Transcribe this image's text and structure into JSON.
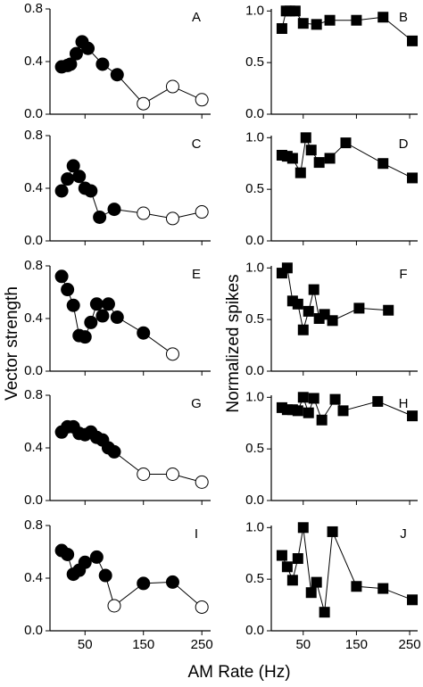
{
  "axis_labels": {
    "left": "Vector strength",
    "right": "Normalized spikes",
    "x": "AM Rate (Hz)"
  },
  "chart_data": [
    {
      "type": "scatter",
      "panel": "A",
      "marker": "circle",
      "x": [
        10,
        20,
        25,
        35,
        45,
        55,
        80,
        105,
        150,
        200,
        250
      ],
      "values": [
        0.36,
        0.37,
        0.38,
        0.46,
        0.55,
        0.5,
        0.38,
        0.3,
        0.08,
        0.21,
        0.11
      ],
      "marker_fill": [
        "#000",
        "#000",
        "#000",
        "#000",
        "#000",
        "#000",
        "#000",
        "#000",
        "#fff",
        "#fff",
        "#fff"
      ],
      "xlim": [
        -10,
        265
      ],
      "xticks": [
        50,
        150,
        250
      ],
      "ylim": [
        0,
        0.8
      ],
      "yticks": [
        {
          "value": 0,
          "label": "0.0"
        },
        0.4,
        0.8
      ]
    },
    {
      "type": "scatter",
      "panel": "B",
      "marker": "square",
      "x": [
        10,
        18,
        25,
        35,
        50,
        75,
        100,
        150,
        200,
        255
      ],
      "values": [
        0.83,
        1.0,
        1.0,
        1.0,
        0.88,
        0.87,
        0.91,
        0.91,
        0.94,
        0.71
      ],
      "xlim": [
        -10,
        265
      ],
      "xticks": [
        50,
        150,
        250
      ],
      "ylim": [
        0,
        1.02
      ],
      "yticks": [
        {
          "value": 0,
          "label": "0.0"
        },
        0.5,
        {
          "value": 1,
          "label": "1.0"
        }
      ]
    },
    {
      "type": "scatter",
      "panel": "C",
      "marker": "circle",
      "x": [
        10,
        20,
        30,
        40,
        50,
        60,
        75,
        100,
        150,
        200,
        250
      ],
      "values": [
        0.38,
        0.47,
        0.57,
        0.49,
        0.4,
        0.38,
        0.18,
        0.24,
        0.21,
        0.17,
        0.22
      ],
      "marker_fill": [
        "#000",
        "#000",
        "#000",
        "#000",
        "#000",
        "#000",
        "#000",
        "#000",
        "#fff",
        "#fff",
        "#fff"
      ],
      "xlim": [
        -10,
        265
      ],
      "xticks": [
        50,
        150,
        250
      ],
      "ylim": [
        0,
        0.8
      ],
      "yticks": [
        {
          "value": 0,
          "label": "0.0"
        },
        0.4,
        0.8
      ]
    },
    {
      "type": "scatter",
      "panel": "D",
      "marker": "square",
      "x": [
        10,
        20,
        30,
        45,
        55,
        65,
        80,
        100,
        130,
        200,
        255
      ],
      "values": [
        0.83,
        0.82,
        0.8,
        0.66,
        1.0,
        0.88,
        0.76,
        0.8,
        0.95,
        0.75,
        0.61
      ],
      "xlim": [
        -10,
        265
      ],
      "xticks": [
        50,
        150,
        250
      ],
      "ylim": [
        0,
        1.02
      ],
      "yticks": [
        {
          "value": 0,
          "label": "0.0"
        },
        0.5,
        {
          "value": 1,
          "label": "1.0"
        }
      ]
    },
    {
      "type": "scatter",
      "panel": "E",
      "marker": "circle",
      "x": [
        10,
        20,
        30,
        40,
        50,
        60,
        70,
        80,
        90,
        105,
        150,
        200
      ],
      "values": [
        0.72,
        0.62,
        0.5,
        0.27,
        0.26,
        0.37,
        0.51,
        0.42,
        0.51,
        0.41,
        0.29,
        0.13
      ],
      "marker_fill": [
        "#000",
        "#000",
        "#000",
        "#000",
        "#000",
        "#000",
        "#000",
        "#000",
        "#000",
        "#000",
        "#000",
        "#fff"
      ],
      "xlim": [
        -10,
        265
      ],
      "xticks": [
        50,
        150,
        250
      ],
      "ylim": [
        0,
        0.8
      ],
      "yticks": [
        {
          "value": 0,
          "label": "0.0"
        },
        0.4,
        0.8
      ]
    },
    {
      "type": "scatter",
      "panel": "F",
      "marker": "square",
      "x": [
        10,
        20,
        30,
        40,
        50,
        60,
        70,
        80,
        90,
        105,
        155,
        210
      ],
      "values": [
        0.95,
        1.0,
        0.68,
        0.65,
        0.4,
        0.58,
        0.79,
        0.51,
        0.55,
        0.49,
        0.61,
        0.59
      ],
      "xlim": [
        -10,
        265
      ],
      "xticks": [
        50,
        150,
        250
      ],
      "ylim": [
        0,
        1.02
      ],
      "yticks": [
        {
          "value": 0,
          "label": "0.0"
        },
        0.5,
        {
          "value": 1,
          "label": "1.0"
        }
      ]
    },
    {
      "type": "scatter",
      "panel": "G",
      "marker": "circle",
      "x": [
        10,
        20,
        30,
        40,
        50,
        60,
        70,
        80,
        90,
        100,
        150,
        200,
        250
      ],
      "values": [
        0.52,
        0.56,
        0.56,
        0.51,
        0.5,
        0.52,
        0.48,
        0.46,
        0.4,
        0.37,
        0.2,
        0.2,
        0.14
      ],
      "marker_fill": [
        "#000",
        "#000",
        "#000",
        "#000",
        "#000",
        "#000",
        "#000",
        "#000",
        "#000",
        "#000",
        "#fff",
        "#fff",
        "#fff"
      ],
      "xlim": [
        -10,
        265
      ],
      "xticks": [
        50,
        150,
        250
      ],
      "ylim": [
        0,
        0.8
      ],
      "yticks": [
        {
          "value": 0,
          "label": "0.0"
        },
        0.4,
        0.8
      ]
    },
    {
      "type": "scatter",
      "panel": "H",
      "marker": "square",
      "x": [
        10,
        20,
        30,
        40,
        50,
        60,
        70,
        85,
        110,
        125,
        190,
        255
      ],
      "values": [
        0.9,
        0.88,
        0.88,
        0.87,
        1.0,
        0.85,
        0.99,
        0.78,
        0.98,
        0.87,
        0.96,
        0.82
      ],
      "xlim": [
        -10,
        265
      ],
      "xticks": [
        50,
        150,
        250
      ],
      "ylim": [
        0,
        1.02
      ],
      "yticks": [
        {
          "value": 0,
          "label": "0.0"
        },
        0.5,
        {
          "value": 1,
          "label": "1.0"
        }
      ]
    },
    {
      "type": "scatter",
      "panel": "I",
      "marker": "circle",
      "x": [
        10,
        20,
        30,
        40,
        50,
        70,
        85,
        100,
        150,
        200,
        250
      ],
      "values": [
        0.61,
        0.58,
        0.43,
        0.46,
        0.52,
        0.56,
        0.42,
        0.19,
        0.36,
        0.37,
        0.18
      ],
      "marker_fill": [
        "#000",
        "#000",
        "#000",
        "#000",
        "#000",
        "#000",
        "#000",
        "#fff",
        "#000",
        "#000",
        "#fff"
      ],
      "xlim": [
        -10,
        265
      ],
      "xticks": [
        50,
        150,
        250
      ],
      "ylim": [
        0,
        0.8
      ],
      "yticks": [
        {
          "value": 0,
          "label": "0.0"
        },
        0.4,
        0.8
      ]
    },
    {
      "type": "scatter",
      "panel": "J",
      "marker": "square",
      "x": [
        10,
        20,
        30,
        40,
        50,
        65,
        75,
        90,
        105,
        150,
        200,
        255
      ],
      "values": [
        0.73,
        0.62,
        0.49,
        0.7,
        1.0,
        0.37,
        0.47,
        0.18,
        0.96,
        0.43,
        0.41,
        0.3
      ],
      "xlim": [
        -10,
        265
      ],
      "xticks": [
        50,
        150,
        250
      ],
      "ylim": [
        0,
        1.02
      ],
      "yticks": [
        {
          "value": 0,
          "label": "0.0"
        },
        0.5,
        {
          "value": 1,
          "label": "1.0"
        }
      ]
    }
  ]
}
